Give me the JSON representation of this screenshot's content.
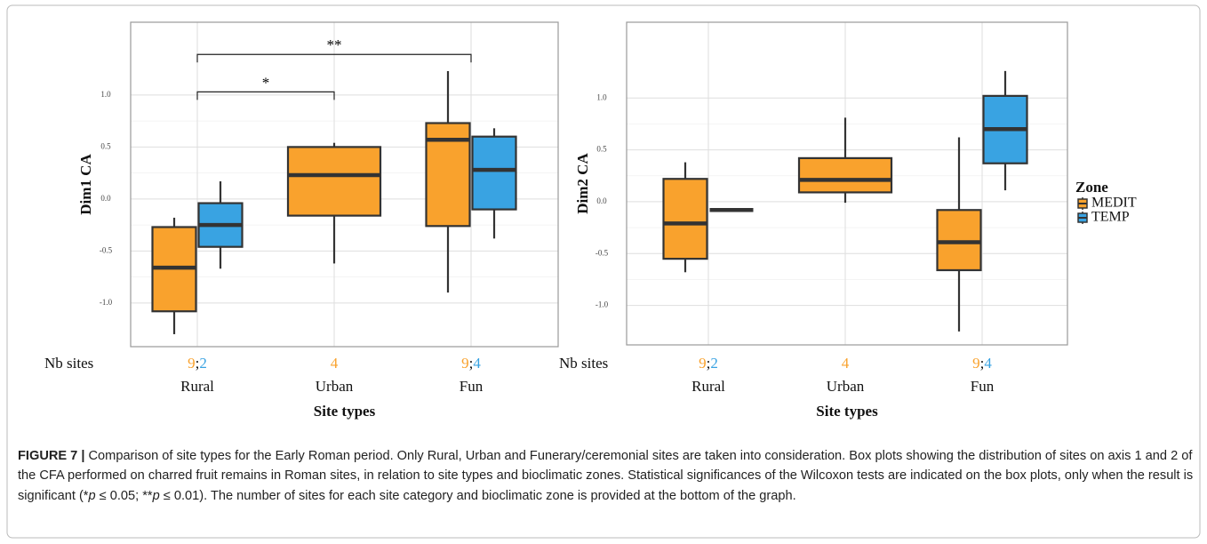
{
  "figure": {
    "label": "FIGURE 7 |",
    "caption": [
      "Comparison of site types for the Early Roman period. Only Rural, Urban and Funerary/ceremonial sites are taken into consideration. Box plots showing the distribution of sites on axis 1 and 2 of the CFA performed on charred fruit remains in Roman sites, in relation to site types and bioclimatic zones. Statistical significances of the Wilcoxon tests are indicated on the box plots, only when the result is significant (*",
      "p",
      " ≤ 0.05; **",
      "p",
      " ≤ 0.01). The number of sites for each site category and bioclimatic zone is provided at the bottom of the graph."
    ]
  },
  "legend": {
    "title": "Zone"
  },
  "chart_data": [
    {
      "type": "box",
      "ylabel": "Dim1 CA",
      "xlabel": "Site types",
      "nb_label": "Nb sites",
      "separator": ";",
      "categories": [
        "Rural",
        "Urban",
        "Fun"
      ],
      "ylim": [
        -1.42,
        1.7
      ],
      "yticks": [
        {
          "value": -1.0,
          "label": "-1.0"
        },
        -0.5,
        {
          "value": 0.0,
          "label": "0.0"
        },
        0.5,
        {
          "value": 1.0,
          "label": "1.0"
        }
      ],
      "grid": true,
      "series": [
        {
          "color": "#f9a22d",
          "whisker_low": [
            -1.3,
            -0.62,
            -0.9
          ],
          "q1": [
            -1.08,
            -0.16,
            -0.26
          ],
          "median": [
            -0.66,
            0.23,
            0.57
          ],
          "q3": [
            -0.27,
            0.5,
            0.73
          ],
          "whisker_high": [
            -0.18,
            0.54,
            1.23
          ],
          "n_sites": [
            9,
            4,
            9
          ]
        },
        {
          "color": "#39a3e2",
          "whisker_low": [
            -0.67,
            null,
            -0.38
          ],
          "q1": [
            -0.46,
            null,
            -0.1
          ],
          "median": [
            -0.25,
            null,
            0.28
          ],
          "q3": [
            -0.04,
            null,
            0.6
          ],
          "whisker_high": [
            0.17,
            null,
            0.68
          ],
          "n_sites": [
            2,
            null,
            4
          ]
        }
      ],
      "brackets": [
        {
          "from": "Rural",
          "to": "Urban",
          "y": 1.03,
          "label": "*"
        },
        {
          "from": "Rural",
          "to": "Fun",
          "y": 1.39,
          "label": "**"
        }
      ]
    },
    {
      "type": "box",
      "ylabel": "Dim2 CA",
      "xlabel": "Site types",
      "nb_label": "Nb sites",
      "separator": ";",
      "categories": [
        "Rural",
        "Urban",
        "Fun"
      ],
      "ylim": [
        -1.38,
        1.73
      ],
      "yticks": [
        {
          "value": -1.0,
          "label": "-1.0"
        },
        -0.5,
        {
          "value": 0.0,
          "label": "0.0"
        },
        0.5,
        {
          "value": 1.0,
          "label": "1.0"
        }
      ],
      "grid": true,
      "series": [
        {
          "name": "MEDIT",
          "color": "#f9a22d",
          "whisker_low": [
            -0.68,
            -0.01,
            -1.25
          ],
          "q1": [
            -0.55,
            0.09,
            -0.66
          ],
          "median": [
            -0.21,
            0.21,
            -0.39
          ],
          "q3": [
            0.22,
            0.42,
            -0.08
          ],
          "whisker_high": [
            0.38,
            0.81,
            0.62
          ],
          "n_sites": [
            9,
            4,
            9
          ]
        },
        {
          "name": "TEMP",
          "color": "#39a3e2",
          "whisker_low": [
            -0.08,
            null,
            0.11
          ],
          "q1": [
            -0.08,
            null,
            0.37
          ],
          "median": [
            -0.08,
            null,
            0.7
          ],
          "q3": [
            -0.08,
            null,
            1.02
          ],
          "whisker_high": [
            -0.08,
            null,
            1.26
          ],
          "n_sites": [
            2,
            null,
            4
          ]
        }
      ]
    }
  ]
}
